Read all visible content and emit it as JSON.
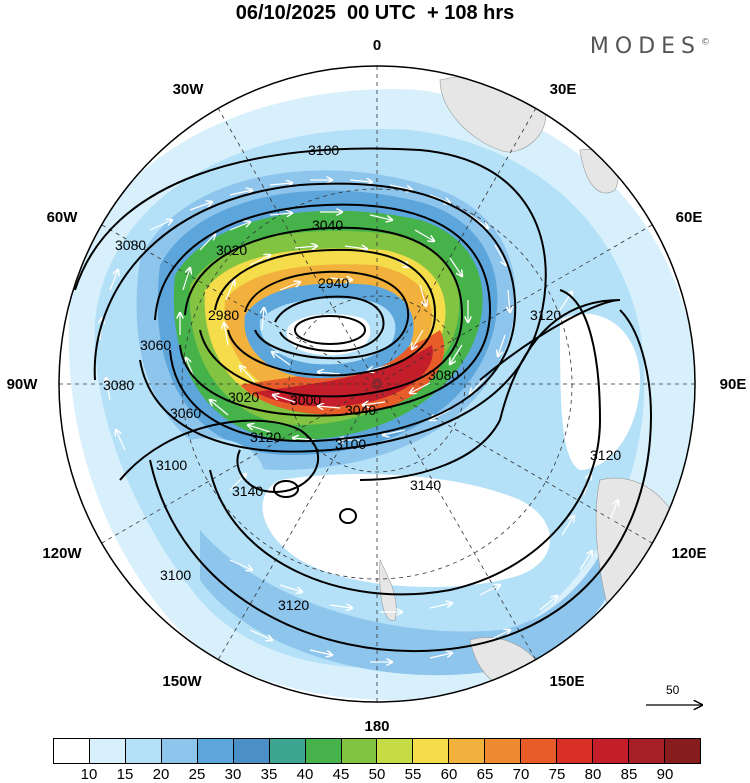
{
  "title": "06/10/2025  00 UTC  + 108 hrs",
  "brand": "MODES",
  "brand_mark": "©",
  "longitude_labels": [
    "0",
    "30E",
    "60E",
    "90E",
    "120E",
    "150E",
    "180",
    "150W",
    "120W",
    "90W",
    "60W",
    "30W"
  ],
  "contour_labels": [
    "3100",
    "3040",
    "3020",
    "2940",
    "2980",
    "3080",
    "3060",
    "3080",
    "3000",
    "3020",
    "3040",
    "3080",
    "3060",
    "3120",
    "3100",
    "3100",
    "3140",
    "3140",
    "3120",
    "3120",
    "3100",
    "3120"
  ],
  "colorbar": {
    "ticks": [
      "10",
      "15",
      "20",
      "25",
      "30",
      "35",
      "40",
      "45",
      "50",
      "55",
      "60",
      "65",
      "70",
      "75",
      "80",
      "85",
      "90"
    ],
    "colors": [
      "#ffffff",
      "#d7f0fc",
      "#b4e1f8",
      "#8ec5ec",
      "#5da6dc",
      "#4a8fc6",
      "#3da590",
      "#45b34a",
      "#82c341",
      "#c6dc47",
      "#f4dc4a",
      "#f2b13c",
      "#ee8a30",
      "#e85c2a",
      "#d93026",
      "#c41e2a",
      "#a51f24",
      "#861c1e"
    ]
  },
  "reference_vector": {
    "label": "50"
  },
  "icons": {
    "vector_arrow": "arrow-right-icon"
  }
}
